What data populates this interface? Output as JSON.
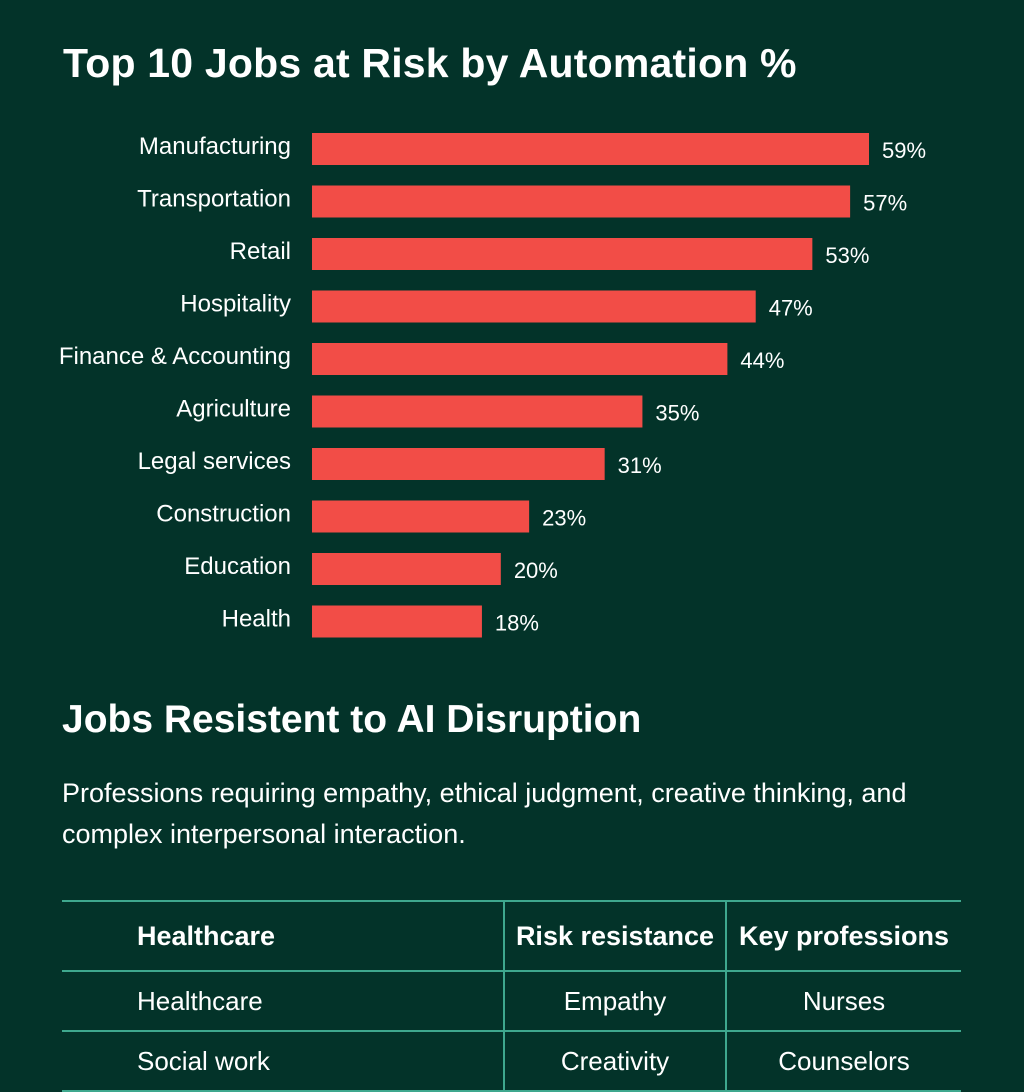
{
  "chart_data": {
    "type": "bar",
    "orientation": "horizontal",
    "title": "Top 10 Jobs at Risk by Automation %",
    "categories": [
      "Manufacturing",
      "Transportation",
      "Retail",
      "Hospitality",
      "Finance & Accounting",
      "Agriculture",
      "Legal services",
      "Construction",
      "Education",
      "Health"
    ],
    "values": [
      59,
      57,
      53,
      47,
      44,
      35,
      31,
      23,
      20,
      18
    ],
    "value_labels": [
      "59%",
      "57%",
      "53%",
      "47%",
      "44%",
      "35%",
      "31%",
      "23%",
      "20%",
      "18%"
    ],
    "xlim": [
      0,
      100
    ],
    "grid": false,
    "colors": {
      "bar": "#f24d47",
      "background": "#033329",
      "text": "#ffffff"
    }
  },
  "resistant": {
    "title": "Jobs Resistent to AI Disruption",
    "description": "Professions requiring empathy, ethical judgment, creative thinking, and complex interpersonal interaction.",
    "table": {
      "headers": [
        "Healthcare",
        "Risk resistance",
        "Key professions"
      ],
      "rows": [
        [
          "Healthcare",
          "Empathy",
          "Nurses"
        ],
        [
          "Social work",
          "Creativity",
          "Counselors"
        ]
      ]
    }
  }
}
